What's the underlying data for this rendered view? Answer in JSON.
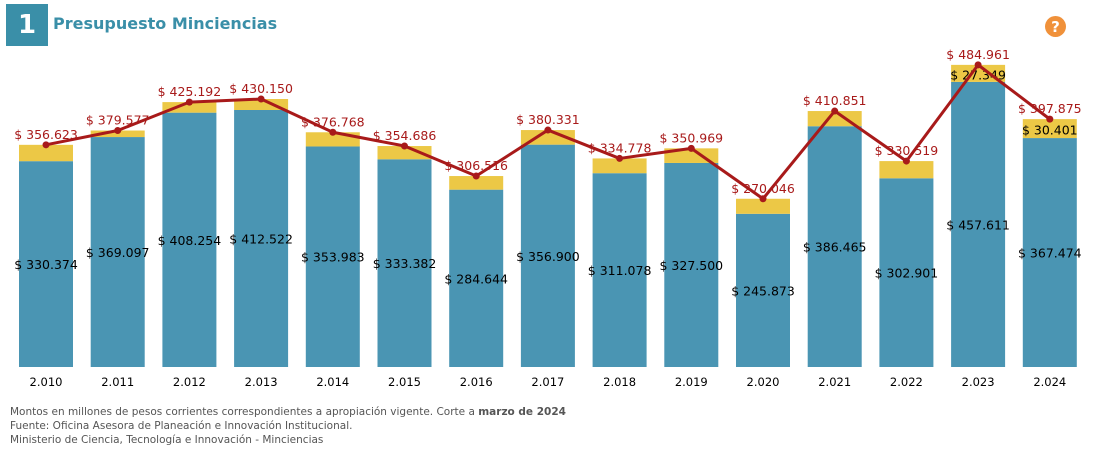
{
  "header": {
    "number": "1",
    "title": "Presupuesto Minciencias",
    "help_icon": "question-circle-icon"
  },
  "colors": {
    "base": "#4a95b3",
    "extra": "#ecc846",
    "line": "#a81a1a"
  },
  "chart_data": {
    "type": "bar",
    "stacked": true,
    "categories": [
      "2.010",
      "2.011",
      "2.012",
      "2.013",
      "2.014",
      "2.015",
      "2.016",
      "2.017",
      "2.018",
      "2.019",
      "2.020",
      "2.021",
      "2.022",
      "2.023",
      "2.024"
    ],
    "series": [
      {
        "name": "base",
        "values": [
          330.374,
          369.097,
          408.254,
          412.522,
          353.983,
          333.382,
          284.644,
          356.9,
          311.078,
          327.5,
          245.873,
          386.465,
          302.901,
          457.611,
          367.474
        ],
        "labels": [
          "$ 330.374",
          "$ 369.097",
          "$ 408.254",
          "$ 412.522",
          "$ 353.983",
          "$ 333.382",
          "$ 284.644",
          "$ 356.900",
          "$ 311.078",
          "$ 327.500",
          "$ 245.873",
          "$ 386.465",
          "$ 302.901",
          "$ 457.611",
          "$ 367.474"
        ]
      },
      {
        "name": "extra",
        "values": [
          26.249,
          10.48,
          16.938,
          17.628,
          22.785,
          21.304,
          21.872,
          23.431,
          23.7,
          23.469,
          24.173,
          24.386,
          27.618,
          27.349,
          30.401
        ],
        "labels": [
          "",
          "",
          "",
          "",
          "",
          "",
          "",
          "",
          "",
          "",
          "",
          "",
          "",
          "$ 27.349",
          "$ 30.401"
        ]
      },
      {
        "name": "total",
        "type": "line",
        "values": [
          356.623,
          379.577,
          425.192,
          430.15,
          376.768,
          354.686,
          306.516,
          380.331,
          334.778,
          350.969,
          270.046,
          410.851,
          330.519,
          484.961,
          397.875
        ],
        "labels": [
          "$ 356.623",
          "$ 379.577",
          "$ 425.192",
          "$ 430.150",
          "$ 376.768",
          "$ 354.686",
          "$ 306.516",
          "$ 380.331",
          "$ 334.778",
          "$ 350.969",
          "$ 270.046",
          "$ 410.851",
          "$ 330.519",
          "$ 484.961",
          "$ 397.875"
        ]
      }
    ],
    "ylim": [
      0,
      490
    ],
    "grid": false
  },
  "footer": {
    "line1": "Montos en millones de pesos corrientes correspondientes a apropiación vigente. Corte a ",
    "line1_bold": "marzo de 2024",
    "line2": "Fuente: Oficina Asesora de Planeación e Innovación Institucional.",
    "line3": "Ministerio de Ciencia, Tecnología e Innovación - Minciencias"
  }
}
